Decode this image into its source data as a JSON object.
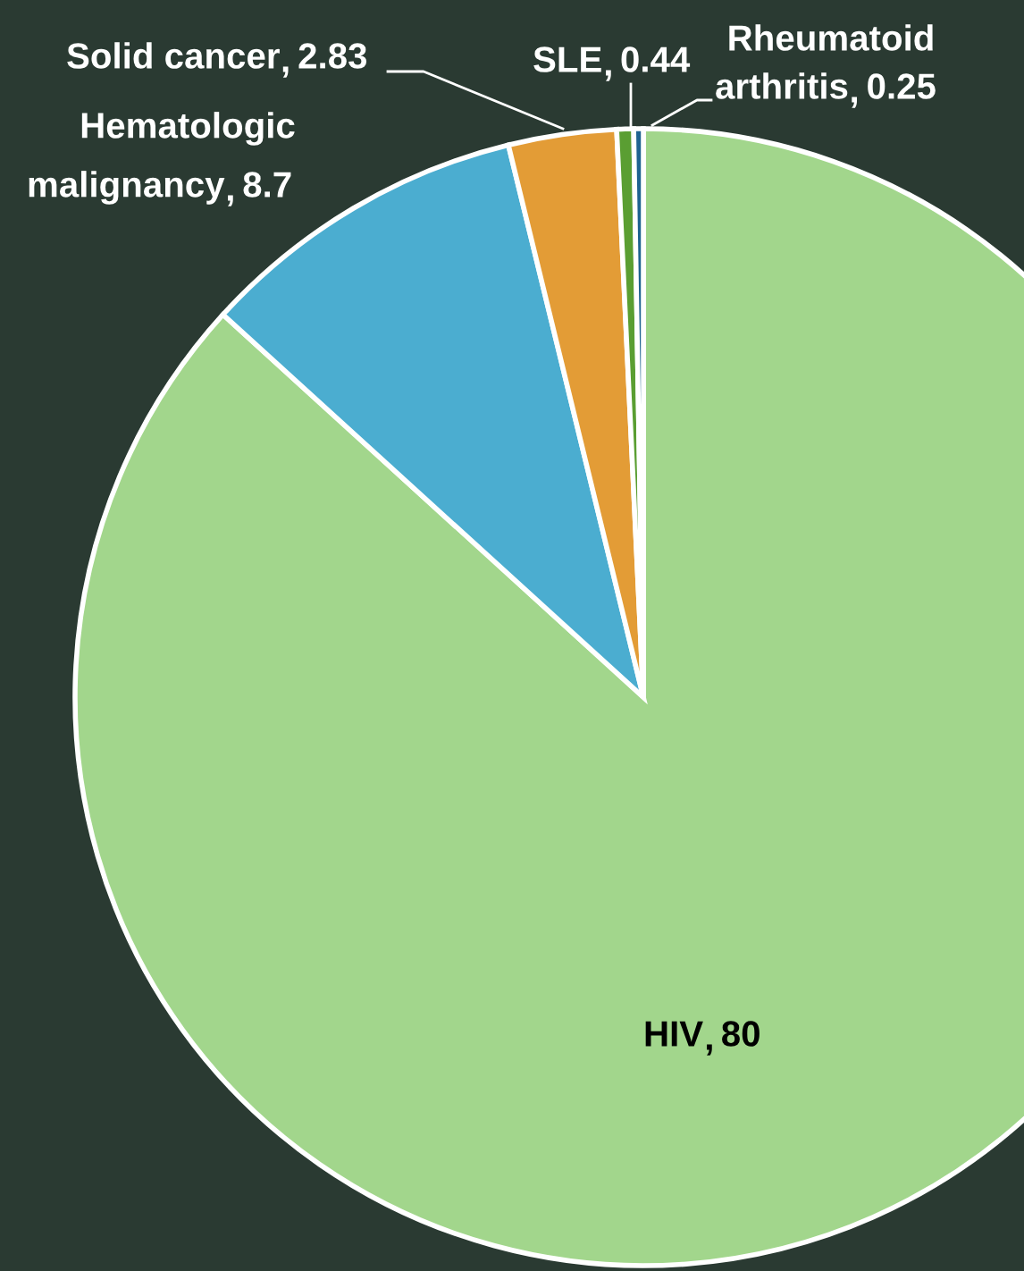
{
  "chart_data": {
    "type": "pie",
    "categories": [
      "HIV",
      "Hematologic malignancy",
      "Solid cancer",
      "SLE",
      "Rheumatoid arthritis"
    ],
    "values": [
      80,
      8.7,
      2.83,
      0.44,
      0.25
    ],
    "colors": [
      "#a2d68c",
      "#4badd0",
      "#e39c36",
      "#5a9e32",
      "#1f6391"
    ],
    "data_labels": true
  }
}
